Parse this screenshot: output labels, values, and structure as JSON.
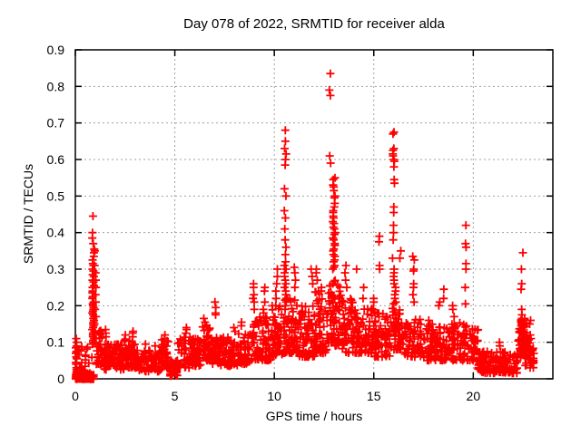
{
  "chart_data": {
    "type": "scatter",
    "title": "Day 078 of 2022, SRMTID for receiver alda",
    "xlabel": "GPS time / hours",
    "ylabel": "SRMTID / TECUs",
    "xlim": [
      0,
      24
    ],
    "ylim": [
      0,
      0.9
    ],
    "xticks": [
      0,
      5,
      10,
      15,
      20
    ],
    "xtick_labels": [
      "0",
      "5",
      "10",
      "15",
      "20"
    ],
    "yticks": [
      0,
      0.1,
      0.2,
      0.3,
      0.4,
      0.5,
      0.6,
      0.7,
      0.8,
      0.9
    ],
    "ytick_labels": [
      "0",
      "0.1",
      "0.2",
      "0.3",
      "0.4",
      "0.5",
      "0.6",
      "0.7",
      "0.8",
      "0.9"
    ],
    "grid": true,
    "legend": "none",
    "marker": "plus",
    "marker_color": "#ff0000",
    "background": "#ffffff",
    "border_color": "#000000",
    "grid_color": "#a0a0a0",
    "notable_points": [
      [
        0.9,
        0.445
      ],
      [
        10.55,
        0.68
      ],
      [
        12.8,
        0.835
      ],
      [
        12.85,
        0.79
      ],
      [
        16.0,
        0.675
      ],
      [
        19.6,
        0.42
      ],
      [
        22.45,
        0.345
      ]
    ],
    "point_cloud": {
      "seed": 7,
      "y_bias": 1.5,
      "block": {
        "x0": 0.02,
        "x1": 0.92,
        "y0": 0.0,
        "y1": 0.011,
        "cols": 26,
        "rows": 3
      },
      "segments": [
        [
          0.1,
          0.85,
          22,
          0.015,
          0.09
        ],
        [
          1.05,
          1.35,
          28,
          0.04,
          0.135
        ],
        [
          1.35,
          2.45,
          85,
          0.025,
          0.095
        ],
        [
          2.45,
          3.1,
          48,
          0.03,
          0.11
        ],
        [
          3.1,
          4.3,
          85,
          0.02,
          0.08
        ],
        [
          4.3,
          4.75,
          32,
          0.03,
          0.11
        ],
        [
          4.75,
          5.15,
          38,
          0.008,
          0.05
        ],
        [
          5.15,
          5.85,
          50,
          0.03,
          0.12
        ],
        [
          5.85,
          6.35,
          40,
          0.035,
          0.11
        ],
        [
          6.35,
          6.8,
          36,
          0.05,
          0.15
        ],
        [
          6.8,
          7.3,
          40,
          0.04,
          0.12
        ],
        [
          7.3,
          8.2,
          65,
          0.035,
          0.115
        ],
        [
          8.2,
          8.85,
          48,
          0.04,
          0.13
        ],
        [
          8.85,
          9.25,
          35,
          0.05,
          0.16
        ],
        [
          9.25,
          9.85,
          48,
          0.05,
          0.17
        ],
        [
          9.85,
          10.45,
          50,
          0.06,
          0.2
        ],
        [
          10.45,
          11.25,
          70,
          0.07,
          0.22
        ],
        [
          11.25,
          12.05,
          70,
          0.06,
          0.2
        ],
        [
          12.05,
          12.65,
          55,
          0.07,
          0.24
        ],
        [
          12.65,
          13.35,
          70,
          0.09,
          0.27
        ],
        [
          13.35,
          14.05,
          60,
          0.07,
          0.22
        ],
        [
          14.05,
          15.05,
          80,
          0.07,
          0.2
        ],
        [
          15.05,
          15.85,
          65,
          0.06,
          0.18
        ],
        [
          15.85,
          16.55,
          55,
          0.08,
          0.21
        ],
        [
          16.55,
          17.45,
          60,
          0.06,
          0.17
        ],
        [
          17.45,
          18.45,
          70,
          0.05,
          0.15
        ],
        [
          18.45,
          19.35,
          65,
          0.05,
          0.16
        ],
        [
          19.35,
          20.25,
          60,
          0.05,
          0.15
        ],
        [
          20.25,
          22.25,
          150,
          0.015,
          0.075
        ],
        [
          22.25,
          22.7,
          55,
          0.06,
          0.17
        ],
        [
          22.6,
          23.05,
          35,
          0.03,
          0.12
        ]
      ],
      "clusters": [
        {
          "x": 0.05,
          "xj": 0.06,
          "ys": [
            0.11,
            0.1,
            0.09,
            0.085,
            0.075,
            0.07,
            0.06,
            0.055,
            0.045,
            0.04,
            0.03,
            0.025,
            0.02,
            0.015
          ]
        },
        {
          "x": 0.9,
          "xj": 0.1,
          "ys": [
            0.445,
            0.4,
            0.385,
            0.37,
            0.355,
            0.345,
            0.335,
            0.325,
            0.315,
            0.31,
            0.3,
            0.295,
            0.285,
            0.28,
            0.27,
            0.265,
            0.255,
            0.25,
            0.24,
            0.235,
            0.225,
            0.22,
            0.21,
            0.205,
            0.2,
            0.195,
            0.19,
            0.185,
            0.18,
            0.175,
            0.17,
            0.165,
            0.16,
            0.155,
            0.15,
            0.145,
            0.14,
            0.135,
            0.13,
            0.125,
            0.12,
            0.115,
            0.11,
            0.105,
            0.1,
            0.095
          ]
        },
        {
          "x": 1.0,
          "xj": 0.08,
          "ys": [
            0.35,
            0.31,
            0.29,
            0.27,
            0.25,
            0.23,
            0.21,
            0.19,
            0.17,
            0.15,
            0.13,
            0.12,
            0.11,
            0.1
          ]
        },
        {
          "x": 1.5,
          "xj": 0.1,
          "ys": [
            0.135,
            0.125,
            0.115
          ]
        },
        {
          "x": 2.5,
          "xj": 0.08,
          "ys": [
            0.12,
            0.105
          ]
        },
        {
          "x": 2.9,
          "xj": 0.1,
          "ys": [
            0.13,
            0.125,
            0.115,
            0.1
          ]
        },
        {
          "x": 3.5,
          "xj": 0.06,
          "ys": [
            0.095
          ]
        },
        {
          "x": 4.0,
          "xj": 0.06,
          "ys": [
            0.09
          ]
        },
        {
          "x": 4.5,
          "xj": 0.1,
          "ys": [
            0.12,
            0.11
          ]
        },
        {
          "x": 5.6,
          "xj": 0.1,
          "ys": [
            0.14,
            0.135,
            0.125
          ]
        },
        {
          "x": 6.5,
          "xj": 0.1,
          "ys": [
            0.165,
            0.155
          ]
        },
        {
          "x": 7.05,
          "xj": 0.08,
          "ys": [
            0.21,
            0.195,
            0.18,
            0.175
          ]
        },
        {
          "x": 8.0,
          "xj": 0.08,
          "ys": [
            0.14,
            0.13
          ]
        },
        {
          "x": 8.35,
          "xj": 0.08,
          "ys": [
            0.155,
            0.145
          ]
        },
        {
          "x": 8.95,
          "xj": 0.1,
          "ys": [
            0.26,
            0.25,
            0.23,
            0.22,
            0.21,
            0.19
          ]
        },
        {
          "x": 9.5,
          "xj": 0.12,
          "ys": [
            0.25,
            0.24,
            0.21,
            0.19,
            0.18,
            0.17
          ]
        },
        {
          "x": 10.1,
          "xj": 0.12,
          "ys": [
            0.3,
            0.28,
            0.26,
            0.24,
            0.22,
            0.2
          ]
        },
        {
          "x": 10.55,
          "xj": 0.1,
          "ys": [
            0.68,
            0.65,
            0.63,
            0.615,
            0.6,
            0.585,
            0.52,
            0.5,
            0.46,
            0.44,
            0.41,
            0.38,
            0.36,
            0.34,
            0.32,
            0.31,
            0.3,
            0.29,
            0.28,
            0.27,
            0.26,
            0.25,
            0.24,
            0.23,
            0.22,
            0.21,
            0.2,
            0.19
          ]
        },
        {
          "x": 11.05,
          "xj": 0.1,
          "ys": [
            0.305,
            0.29,
            0.27,
            0.25
          ]
        },
        {
          "x": 11.9,
          "xj": 0.1,
          "ys": [
            0.3,
            0.28,
            0.26
          ]
        },
        {
          "x": 12.15,
          "xj": 0.1,
          "ys": [
            0.3,
            0.29,
            0.27
          ]
        },
        {
          "x": 12.35,
          "xj": 0.08,
          "ys": [
            0.25,
            0.24
          ]
        },
        {
          "x": 12.8,
          "xj": 0.08,
          "ys": [
            0.835,
            0.79,
            0.775,
            0.61,
            0.59
          ]
        },
        {
          "x": 13.0,
          "xj": 0.12,
          "ys": [
            0.55,
            0.545,
            0.53,
            0.525,
            0.515,
            0.5,
            0.495,
            0.48,
            0.47,
            0.46,
            0.455,
            0.445,
            0.44,
            0.43,
            0.425,
            0.415,
            0.41,
            0.4,
            0.395,
            0.385,
            0.38,
            0.37,
            0.365,
            0.355,
            0.35,
            0.34,
            0.335,
            0.325,
            0.32,
            0.31,
            0.305,
            0.3
          ]
        },
        {
          "x": 13.6,
          "xj": 0.1,
          "ys": [
            0.31,
            0.29,
            0.27,
            0.25
          ]
        },
        {
          "x": 14.15,
          "xj": 0.06,
          "ys": [
            0.3
          ]
        },
        {
          "x": 14.5,
          "xj": 0.08,
          "ys": [
            0.25,
            0.22
          ]
        },
        {
          "x": 15.0,
          "xj": 0.08,
          "ys": [
            0.22,
            0.21
          ]
        },
        {
          "x": 15.3,
          "xj": 0.08,
          "ys": [
            0.39,
            0.375,
            0.31,
            0.3
          ]
        },
        {
          "x": 16.0,
          "xj": 0.12,
          "ys": [
            0.675,
            0.67,
            0.63,
            0.625,
            0.615,
            0.61,
            0.6,
            0.595,
            0.58,
            0.545,
            0.535,
            0.47,
            0.455,
            0.42,
            0.4,
            0.38,
            0.33
          ]
        },
        {
          "x": 16.05,
          "xj": 0.12,
          "ys": [
            0.3,
            0.29,
            0.28,
            0.27,
            0.26,
            0.25,
            0.24,
            0.23,
            0.22,
            0.21
          ]
        },
        {
          "x": 16.35,
          "xj": 0.08,
          "ys": [
            0.35,
            0.33
          ]
        },
        {
          "x": 17.0,
          "xj": 0.1,
          "ys": [
            0.335,
            0.325,
            0.3,
            0.295,
            0.26,
            0.25,
            0.23,
            0.21
          ]
        },
        {
          "x": 17.8,
          "xj": 0.08,
          "ys": [
            0.16,
            0.15
          ]
        },
        {
          "x": 18.3,
          "xj": 0.08,
          "ys": [
            0.21,
            0.2
          ]
        },
        {
          "x": 18.55,
          "xj": 0.08,
          "ys": [
            0.245,
            0.22
          ]
        },
        {
          "x": 19.0,
          "xj": 0.1,
          "ys": [
            0.2,
            0.19,
            0.17
          ]
        },
        {
          "x": 19.6,
          "xj": 0.08,
          "ys": [
            0.42,
            0.37,
            0.36,
            0.315,
            0.3,
            0.25,
            0.205
          ]
        },
        {
          "x": 21.3,
          "xj": 0.1,
          "ys": [
            0.1,
            0.09
          ]
        },
        {
          "x": 22.45,
          "xj": 0.1,
          "ys": [
            0.345,
            0.3,
            0.26,
            0.245,
            0.19,
            0.175,
            0.165,
            0.155,
            0.15,
            0.145,
            0.14,
            0.135,
            0.13,
            0.125,
            0.12,
            0.115,
            0.11,
            0.105,
            0.1
          ]
        },
        {
          "x": 22.85,
          "xj": 0.1,
          "ys": [
            0.16,
            0.15,
            0.12,
            0.11
          ]
        }
      ]
    }
  }
}
